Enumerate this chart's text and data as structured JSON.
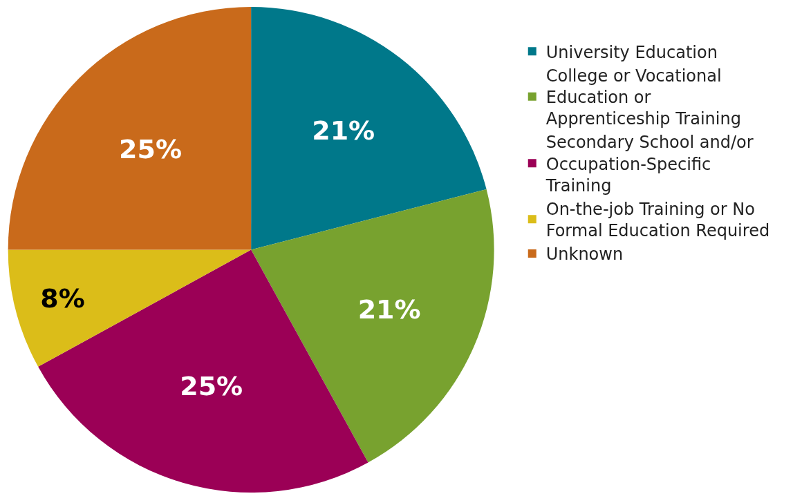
{
  "chart_data": {
    "type": "pie",
    "categories": [
      "University Education",
      "College or Vocational Education or Apprenticeship Training",
      "Secondary School and/or Occupation-Specific Training",
      "On-the-job Training or No Formal Education Required",
      "Unknown"
    ],
    "values": [
      21,
      21,
      25,
      8,
      25
    ],
    "value_labels": [
      "21%",
      "21%",
      "25%",
      "8%",
      "25%"
    ],
    "colors": [
      "#00788a",
      "#78a22f",
      "#9b0056",
      "#dbbd19",
      "#c96a1b"
    ],
    "legend": "right"
  }
}
